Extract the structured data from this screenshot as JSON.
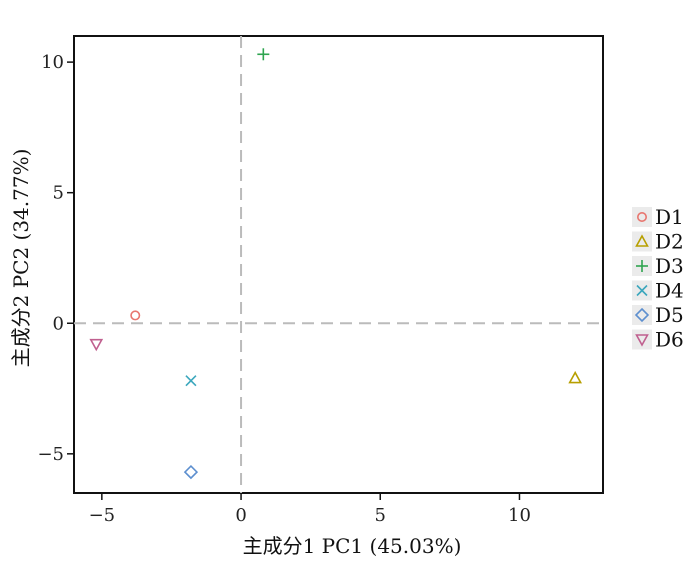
{
  "chart_data": {
    "type": "scatter",
    "xlabel": "主成分1  PC1 (45.03%)",
    "ylabel": "主成分2  PC2 (34.77%)",
    "xlim": [
      -6,
      13
    ],
    "ylim": [
      -6.5,
      11
    ],
    "xticks": [
      -5,
      0,
      5,
      10
    ],
    "yticks": [
      -5,
      0,
      5,
      10
    ],
    "reference_lines": {
      "x": 0,
      "y": 0,
      "style": "dashed"
    },
    "grid": false,
    "legend_position": "right",
    "series": [
      {
        "name": "D1",
        "marker": "circle",
        "color": "#e8766f",
        "x": -3.8,
        "y": 0.3
      },
      {
        "name": "D2",
        "marker": "triangle-up",
        "color": "#b79f00",
        "x": 12.0,
        "y": -2.1
      },
      {
        "name": "D3",
        "marker": "plus",
        "color": "#2ea44f",
        "x": 0.8,
        "y": 10.3
      },
      {
        "name": "D4",
        "marker": "cross",
        "color": "#3ba7bd",
        "x": -1.8,
        "y": -2.2
      },
      {
        "name": "D5",
        "marker": "diamond",
        "color": "#5d8fcf",
        "x": -1.8,
        "y": -5.7
      },
      {
        "name": "D6",
        "marker": "triangle-down",
        "color": "#c0608f",
        "x": -5.2,
        "y": -0.8
      }
    ]
  }
}
